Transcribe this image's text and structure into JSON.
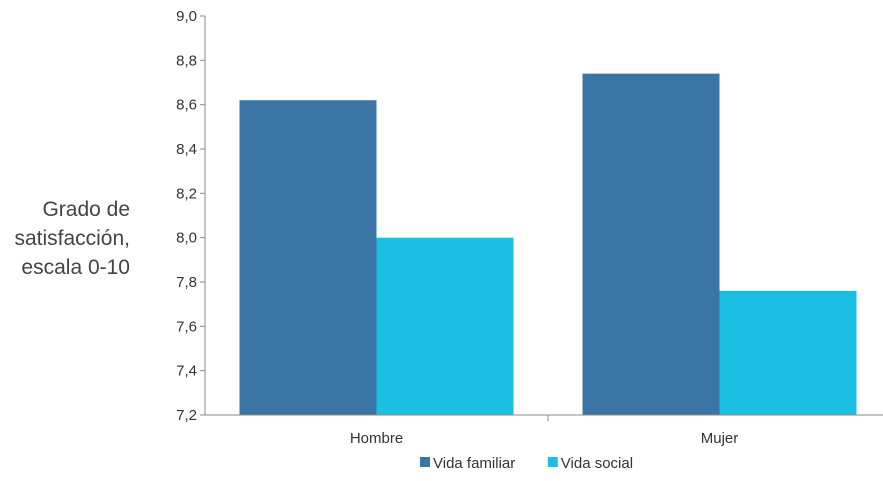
{
  "chart_data": {
    "type": "bar",
    "title": "",
    "xlabel": "",
    "ylabel_lines": [
      "Grado de",
      "satisfacción,",
      "escala 0-10"
    ],
    "categories": [
      "Hombre",
      "Mujer"
    ],
    "series": [
      {
        "name": "Vida familiar",
        "color": "#3a75a6",
        "values": [
          8.62,
          8.74
        ]
      },
      {
        "name": "Vida social",
        "color": "#1bbfe4",
        "values": [
          8.0,
          7.76
        ]
      }
    ],
    "ylim": [
      7.2,
      9.0
    ],
    "yticks": [
      "7,2",
      "7,4",
      "7,6",
      "7,8",
      "8,0",
      "8,2",
      "8,4",
      "8,6",
      "8,8",
      "9,0"
    ],
    "grid": false,
    "legend_position": "bottom-center"
  }
}
